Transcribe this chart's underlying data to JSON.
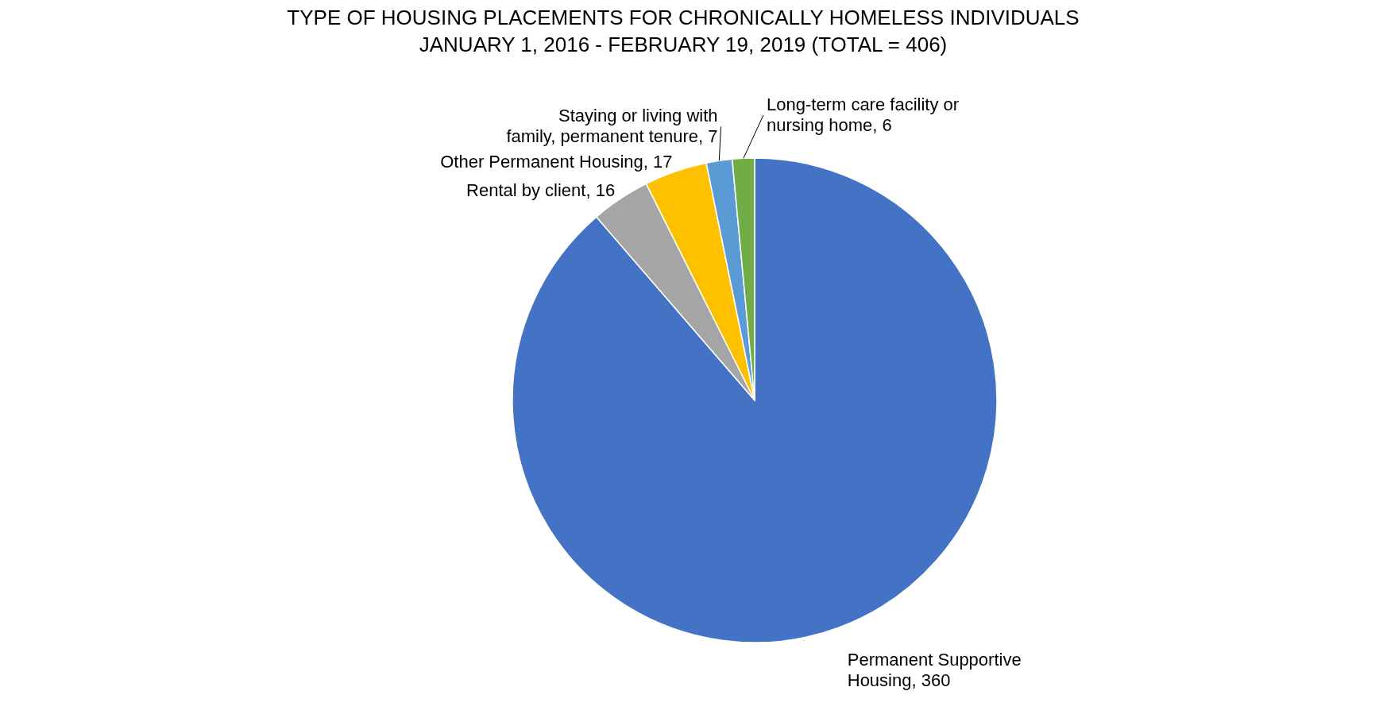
{
  "chart_data": {
    "type": "pie",
    "title": "TYPE OF HOUSING PLACEMENTS FOR CHRONICALLY HOMELESS INDIVIDUALS",
    "subtitle": "JANUARY 1, 2016  - FEBRUARY 19, 2019 (TOTAL = 406)",
    "categories": [
      "Permanent Supportive Housing",
      "Rental by client",
      "Other Permanent Housing",
      "Staying or living with family, permanent tenure",
      "Long-term care facility or nursing home"
    ],
    "values": [
      360,
      16,
      17,
      7,
      6
    ],
    "colors": [
      "#4472c4",
      "#a5a5a5",
      "#ffc000",
      "#5b9bd5",
      "#70ad47"
    ],
    "value_labels": [
      ", 360",
      ", 16",
      ", 17",
      ", 7",
      ", 6"
    ],
    "legend": false
  }
}
